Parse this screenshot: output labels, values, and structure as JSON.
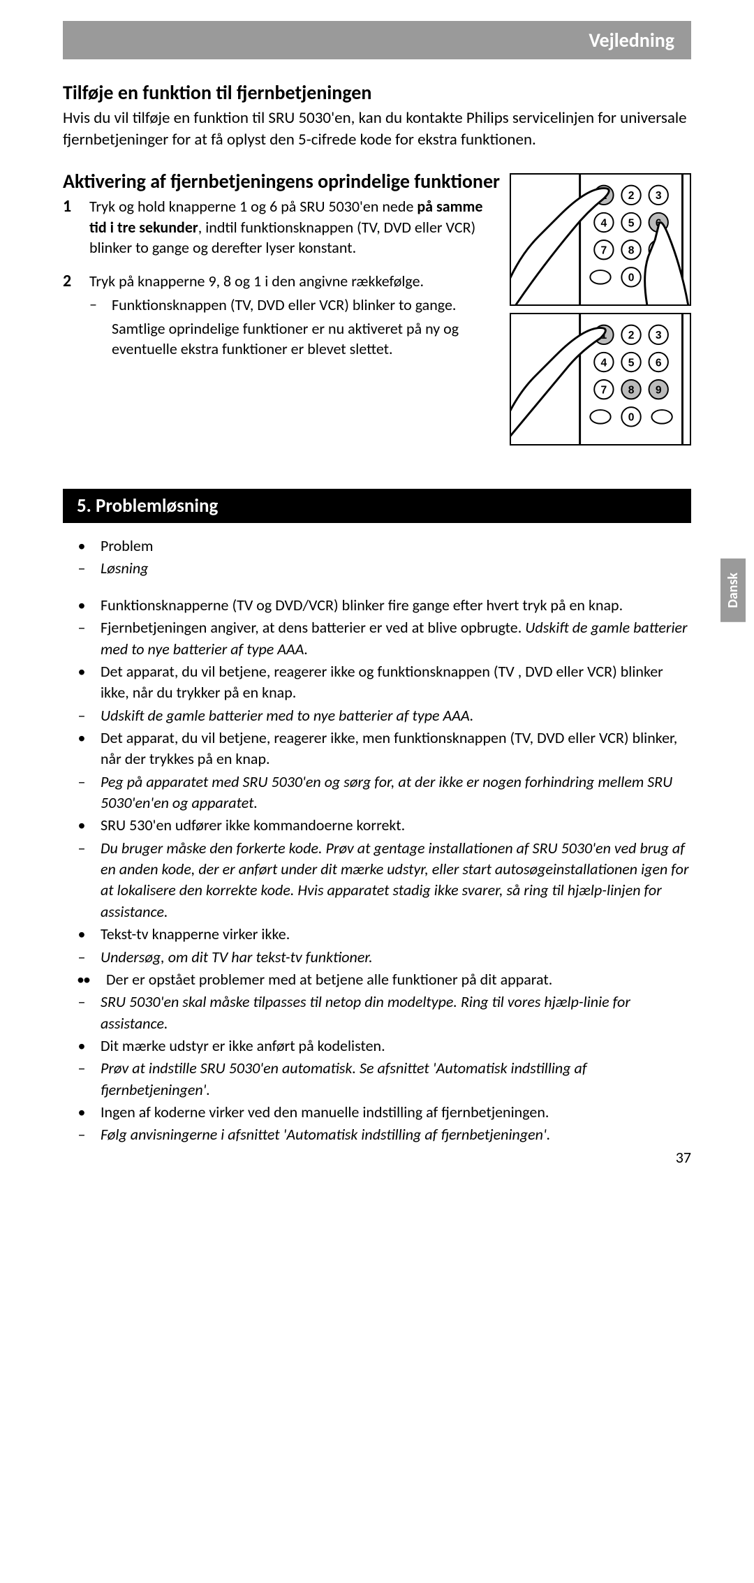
{
  "header": "Vejledning",
  "sideTab": "Dansk",
  "section1": {
    "title": "Tilføje en funktion til fjernbetjeningen",
    "body": "Hvis du vil tilføje en funktion til SRU 5030'en, kan du kontakte Philips servicelinjen for universale fjernbetjeninger for at få oplyst den 5-cifrede kode for ekstra funktionen."
  },
  "section2": {
    "title": "Aktivering af fjernbetjeningens oprindelige funktioner",
    "steps": [
      {
        "num": "1",
        "pre": "Tryk og hold knapperne 1 og 6 på SRU 5030'en nede ",
        "boldPart": "på samme tid i tre sekunder",
        "post": ", indtil funktionsknappen (TV, DVD eller VCR) blinker to gange og derefter lyser konstant."
      },
      {
        "num": "2",
        "text": "Tryk på knapperne 9, 8 og 1 i den angivne rækkefølge.",
        "dashes": [
          "Funktionsknappen (TV, DVD eller VCR) blinker to gange.",
          "Samtlige oprindelige funktioner er nu aktiveret på ny og eventuelle ekstra funktioner er blevet slettet."
        ]
      }
    ]
  },
  "section3": {
    "title": "5. Problemløsning",
    "problemLabel": "Problem",
    "solutionLabel": "Løsning",
    "items": [
      {
        "type": "bullet",
        "text": "Funktionsknapperne (TV og DVD/VCR) blinker fire gange efter hvert tryk på en knap."
      },
      {
        "type": "dash",
        "italic1": "",
        "plain": "Fjernbetjeningen angiver, at dens batterier er ved at blive opbrugte. ",
        "italic2": "Udskift de gamle batterier med to nye batterier af type AAA."
      },
      {
        "type": "bullet",
        "text": "Det apparat, du vil betjene, reagerer ikke og funktionsknappen (TV , DVD eller VCR) blinker ikke, når du trykker på en knap."
      },
      {
        "type": "dash-italic",
        "text": "Udskift de gamle batterier med to nye batterier af type AAA."
      },
      {
        "type": "bullet",
        "text": "Det apparat, du vil betjene, reagerer ikke, men funktionsknappen (TV, DVD eller VCR) blinker, når der trykkes på en knap."
      },
      {
        "type": "dash-italic",
        "text": "Peg på apparatet med SRU 5030'en og sørg for, at der ikke er nogen forhindring mellem SRU 5030'en'en og apparatet."
      },
      {
        "type": "bullet",
        "text": "SRU 530'en udfører ikke kommandoerne korrekt."
      },
      {
        "type": "dash-italic",
        "text": "Du bruger måske den forkerte kode. Prøv at gentage installationen af SRU 5030'en ved brug af en anden kode, der er anført under dit mærke udstyr, eller start autosøgeinstallationen igen for at lokalisere den korrekte kode. Hvis apparatet stadig ikke svarer, så ring til hjælp-linjen for assistance."
      },
      {
        "type": "bullet",
        "text": "Tekst-tv knapperne virker ikke."
      },
      {
        "type": "dash-italic",
        "text": "Undersøg, om dit TV har tekst-tv funktioner."
      },
      {
        "type": "bullet-double",
        "text": "Der er opstået problemer med at betjene alle funktioner på dit apparat."
      },
      {
        "type": "dash-italic",
        "text": "SRU 5030'en skal måske tilpasses til netop din modeltype. Ring til vores hjælp-linie for assistance."
      },
      {
        "type": "bullet",
        "text": "Dit mærke udstyr er ikke anført på kodelisten."
      },
      {
        "type": "dash-italic",
        "text": "Prøv at indstille SRU 5030'en automatisk. Se afsnittet 'Automatisk indstilling af fjernbetjeningen'."
      },
      {
        "type": "bullet",
        "text": "Ingen af koderne virker ved den manuelle indstilling af fjernbetjeningen."
      },
      {
        "type": "dash-italic",
        "text": "Følg anvisningerne i afsnittet 'Automatisk indstilling af fjernbetjeningen'."
      }
    ]
  },
  "pageNumber": "37",
  "figure1": {
    "pressed": [
      1,
      6
    ],
    "keys": [
      [
        1,
        2,
        3
      ],
      [
        4,
        5,
        6
      ],
      [
        7,
        8,
        9
      ],
      [
        null,
        0,
        null
      ]
    ]
  },
  "figure2": {
    "pressed": [
      1,
      8,
      9
    ],
    "keys": [
      [
        1,
        2,
        3
      ],
      [
        4,
        5,
        6
      ],
      [
        7,
        8,
        9
      ],
      [
        null,
        0,
        null
      ]
    ]
  }
}
